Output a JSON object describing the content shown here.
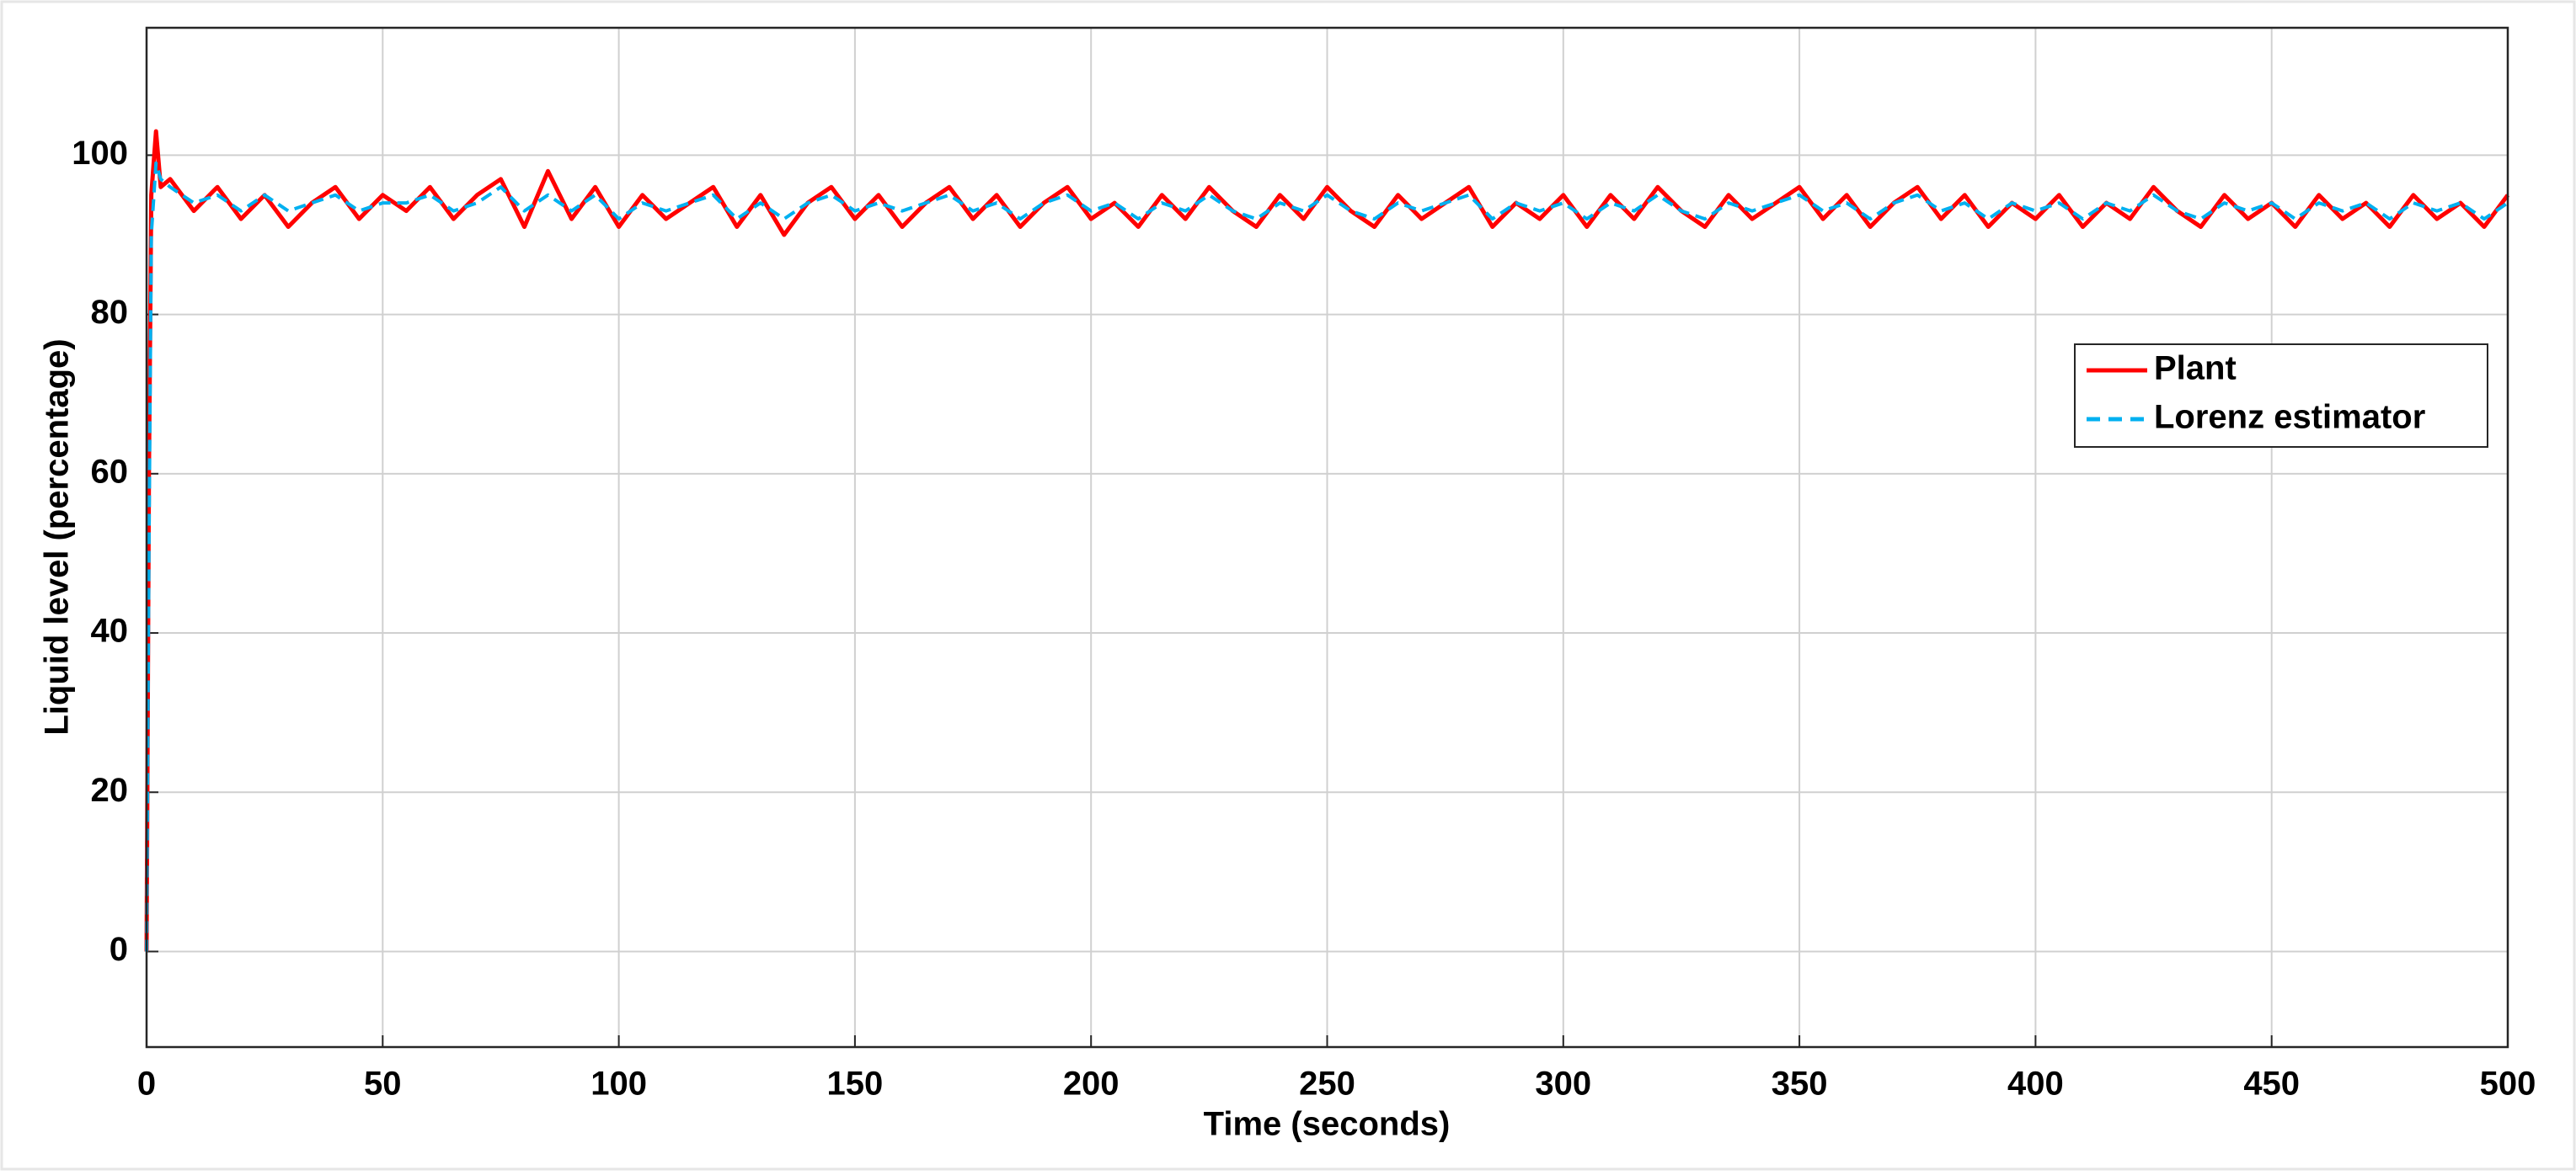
{
  "chart_data": {
    "type": "line",
    "x_label": "Time (seconds)",
    "y_label": "Liquid level (percentage)",
    "x": [
      0,
      0.5,
      1,
      2,
      3,
      5,
      10,
      15,
      20,
      25,
      30,
      35,
      40,
      45,
      50,
      55,
      60,
      65,
      70,
      75,
      80,
      85,
      90,
      95,
      100,
      105,
      110,
      115,
      120,
      125,
      130,
      135,
      140,
      145,
      150,
      155,
      160,
      165,
      170,
      175,
      180,
      185,
      190,
      195,
      200,
      205,
      210,
      215,
      220,
      225,
      230,
      235,
      240,
      245,
      250,
      255,
      260,
      265,
      270,
      275,
      280,
      285,
      290,
      295,
      300,
      305,
      310,
      315,
      320,
      325,
      330,
      335,
      340,
      345,
      350,
      355,
      360,
      365,
      370,
      375,
      380,
      385,
      390,
      395,
      400,
      405,
      410,
      415,
      420,
      425,
      430,
      435,
      440,
      445,
      450,
      455,
      460,
      465,
      470,
      475,
      480,
      485,
      490,
      495,
      500
    ],
    "series": [
      {
        "name": "Plant",
        "color": "#ff0000",
        "style": "solid",
        "values": [
          0,
          60,
          95,
          103,
          96,
          97,
          93,
          96,
          92,
          95,
          91,
          94,
          96,
          92,
          95,
          93,
          96,
          92,
          95,
          97,
          91,
          98,
          92,
          96,
          91,
          95,
          92,
          94,
          96,
          91,
          95,
          90,
          94,
          96,
          92,
          95,
          91,
          94,
          96,
          92,
          95,
          91,
          94,
          96,
          92,
          94,
          91,
          95,
          92,
          96,
          93,
          91,
          95,
          92,
          96,
          93,
          91,
          95,
          92,
          94,
          96,
          91,
          94,
          92,
          95,
          91,
          95,
          92,
          96,
          93,
          91,
          95,
          92,
          94,
          96,
          92,
          95,
          91,
          94,
          96,
          92,
          95,
          91,
          94,
          92,
          95,
          91,
          94,
          92,
          96,
          93,
          91,
          95,
          92,
          94,
          91,
          95,
          92,
          94,
          91,
          95,
          92,
          94,
          91,
          95
        ]
      },
      {
        "name": "Lorenz estimator",
        "color": "#00b0f0",
        "style": "dashed",
        "values": [
          0,
          50,
          90,
          99,
          97,
          96,
          94,
          95,
          93,
          95,
          93,
          94,
          95,
          93,
          94,
          94,
          95,
          93,
          94,
          96,
          93,
          95,
          93,
          95,
          92,
          94,
          93,
          94,
          95,
          92,
          94,
          92,
          94,
          95,
          93,
          94,
          93,
          94,
          95,
          93,
          94,
          92,
          94,
          95,
          93,
          94,
          92,
          94,
          93,
          95,
          93,
          92,
          94,
          93,
          95,
          93,
          92,
          94,
          93,
          94,
          95,
          92,
          94,
          93,
          94,
          92,
          94,
          93,
          95,
          93,
          92,
          94,
          93,
          94,
          95,
          93,
          94,
          92,
          94,
          95,
          93,
          94,
          92,
          94,
          93,
          94,
          92,
          94,
          93,
          95,
          93,
          92,
          94,
          93,
          94,
          92,
          94,
          93,
          94,
          92,
          94,
          93,
          94,
          92,
          94
        ]
      }
    ],
    "xlim": [
      0,
      500
    ],
    "xticks": [
      0,
      50,
      100,
      150,
      200,
      250,
      300,
      350,
      400,
      450,
      500
    ],
    "ylim": [
      -12,
      116
    ],
    "yticks": [
      0,
      20,
      40,
      60,
      80,
      100
    ],
    "grid": true,
    "legend": "right"
  }
}
